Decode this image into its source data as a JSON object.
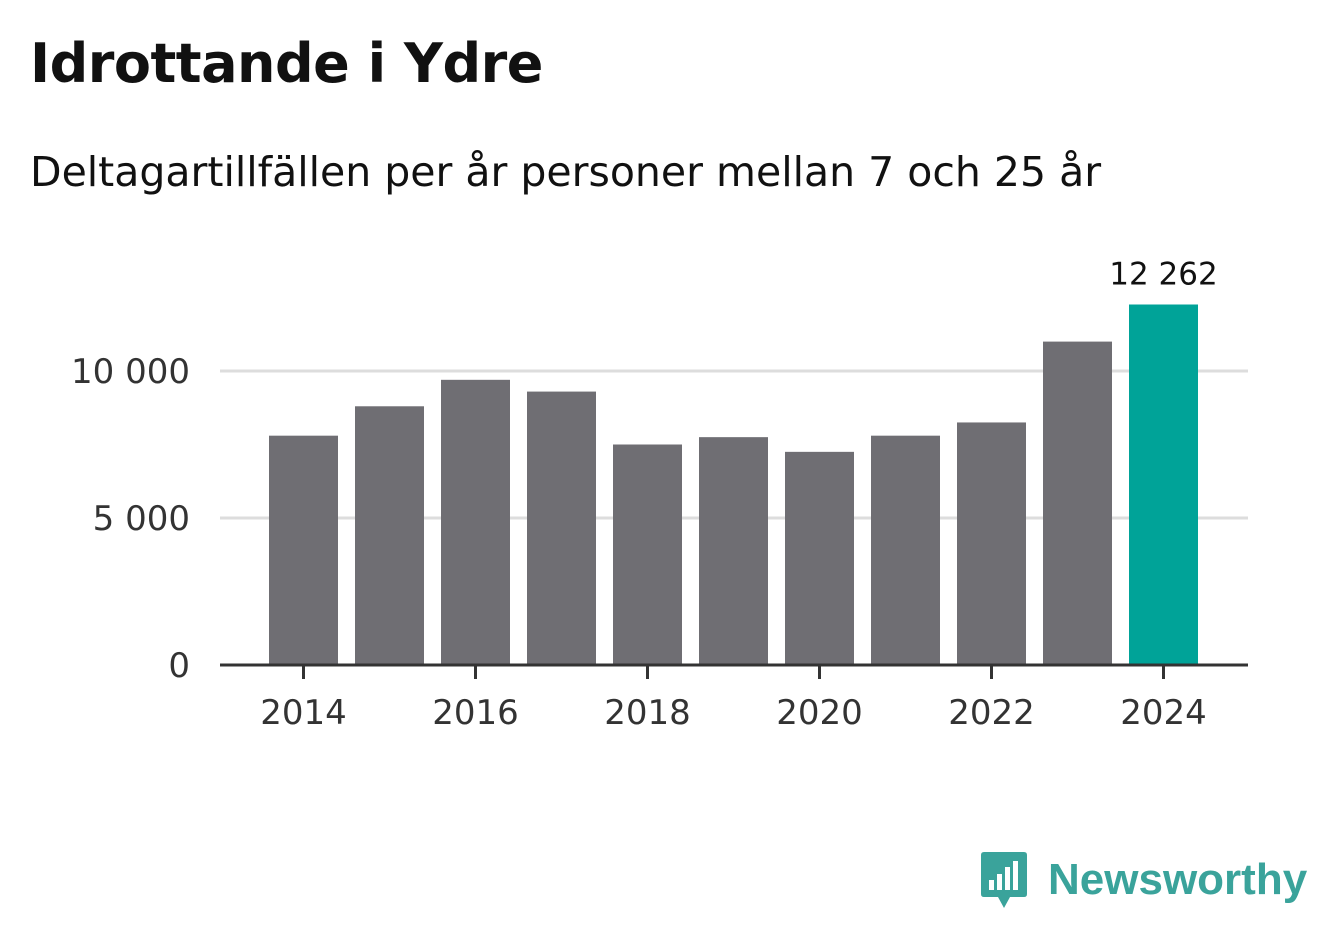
{
  "title": "Idrottande i Ydre",
  "subtitle": "Deltagartillfällen per år personer mellan 7 och 25 år",
  "brand": {
    "name": "Newsworthy",
    "icon": "newsworthy-logo-icon",
    "color": "#3aa39b"
  },
  "chart_data": {
    "type": "bar",
    "categories": [
      "2014",
      "2015",
      "2016",
      "2017",
      "2018",
      "2019",
      "2020",
      "2021",
      "2022",
      "2023",
      "2024"
    ],
    "values": [
      7800,
      8800,
      9700,
      9300,
      7500,
      7750,
      7250,
      7800,
      8250,
      11000,
      12262
    ],
    "x_tick_labels": [
      "2014",
      "2016",
      "2018",
      "2020",
      "2022",
      "2024"
    ],
    "y_ticks": [
      0,
      5000,
      10000
    ],
    "y_tick_labels": [
      "0",
      "5 000",
      "10 000"
    ],
    "ylim": [
      0,
      12800
    ],
    "highlight_index": 10,
    "highlight_label": "12 262",
    "colors": {
      "bar": "#6f6e73",
      "highlight": "#00a398",
      "grid": "#dddddd",
      "axis": "#333333"
    },
    "grid": true,
    "legend": "none"
  }
}
